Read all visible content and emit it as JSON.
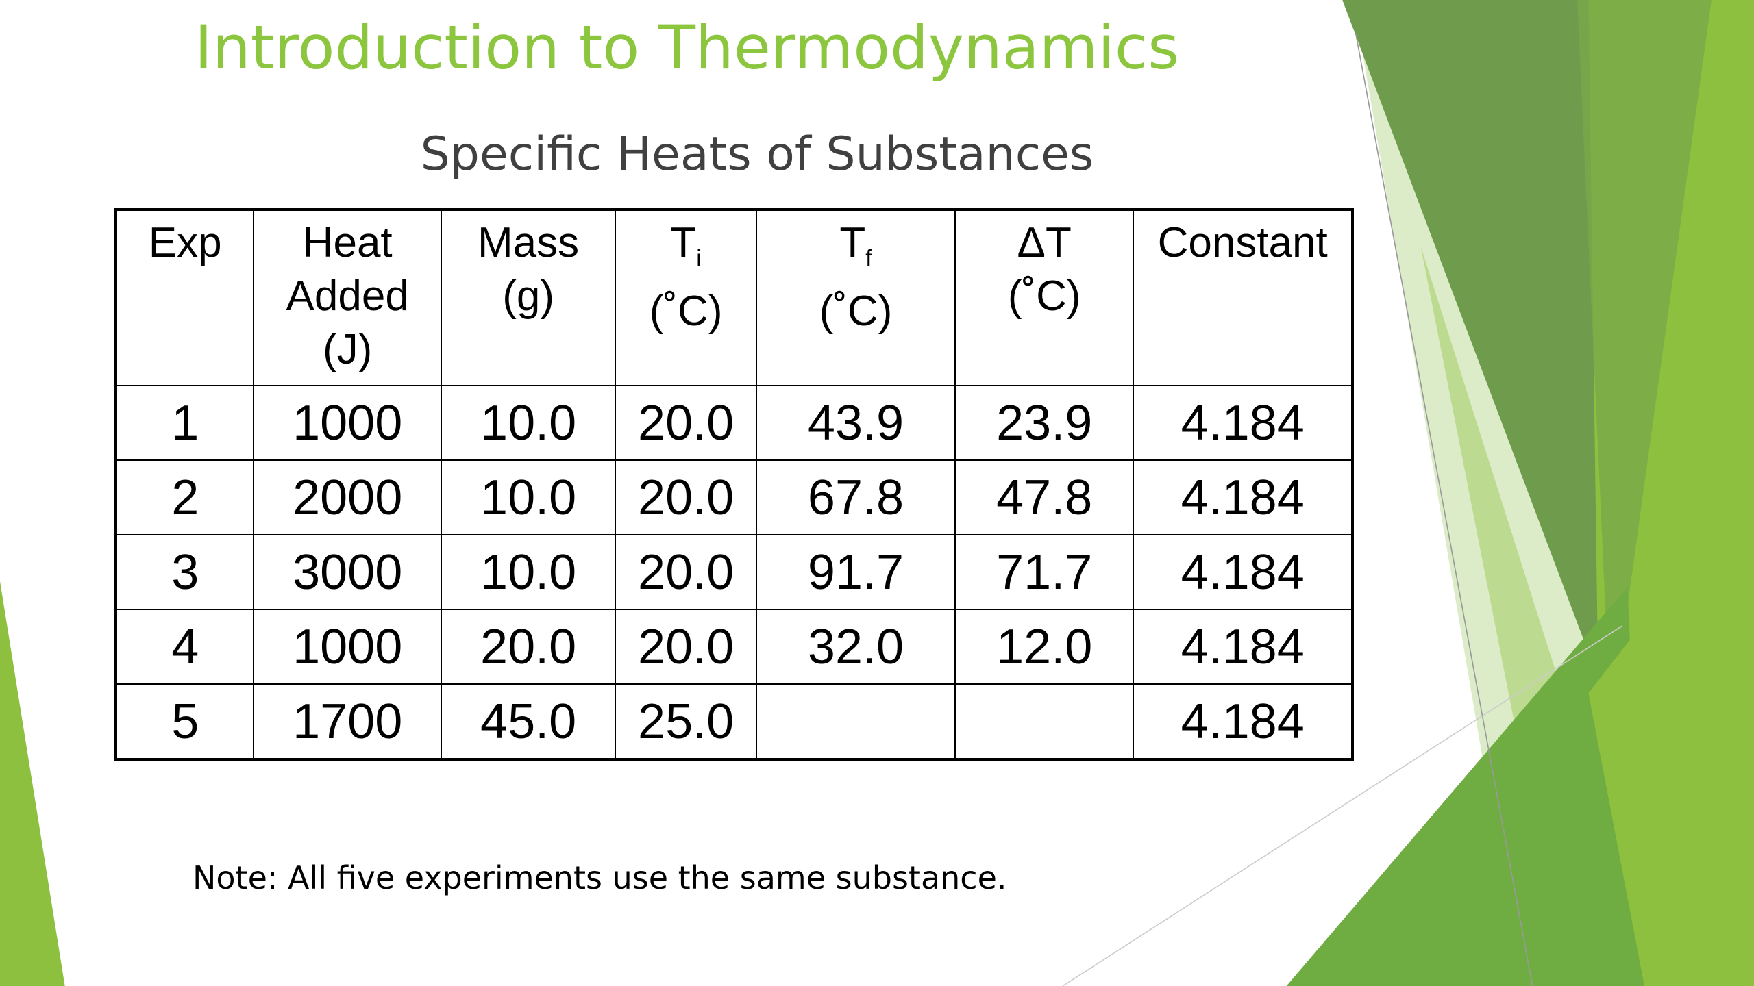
{
  "title": "Introduction to Thermodynamics",
  "table": {
    "title": "Specific Heats of Substances",
    "headers": [
      {
        "label": "Exp"
      },
      {
        "label": "Heat Added",
        "unit": "(J)"
      },
      {
        "label": "Mass",
        "unit": "(g)"
      },
      {
        "label": "T",
        "sub": "i",
        "unit": "(˚C)"
      },
      {
        "label": "T",
        "sub": "f",
        "unit": "(˚C)"
      },
      {
        "label": "ΔT",
        "unit": "(˚C)"
      },
      {
        "label": "Constant"
      }
    ],
    "rows": [
      [
        "1",
        "1000",
        "10.0",
        "20.0",
        "43.9",
        "23.9",
        "4.184"
      ],
      [
        "2",
        "2000",
        "10.0",
        "20.0",
        "67.8",
        "47.8",
        "4.184"
      ],
      [
        "3",
        "3000",
        "10.0",
        "20.0",
        "91.7",
        "71.7",
        "4.184"
      ],
      [
        "4",
        "1000",
        "20.0",
        "20.0",
        "32.0",
        "12.0",
        "4.184"
      ],
      [
        "5",
        "1700",
        "45.0",
        "25.0",
        null,
        null,
        "4.184"
      ]
    ]
  },
  "note": "Note: All five experiments use the same substance."
}
